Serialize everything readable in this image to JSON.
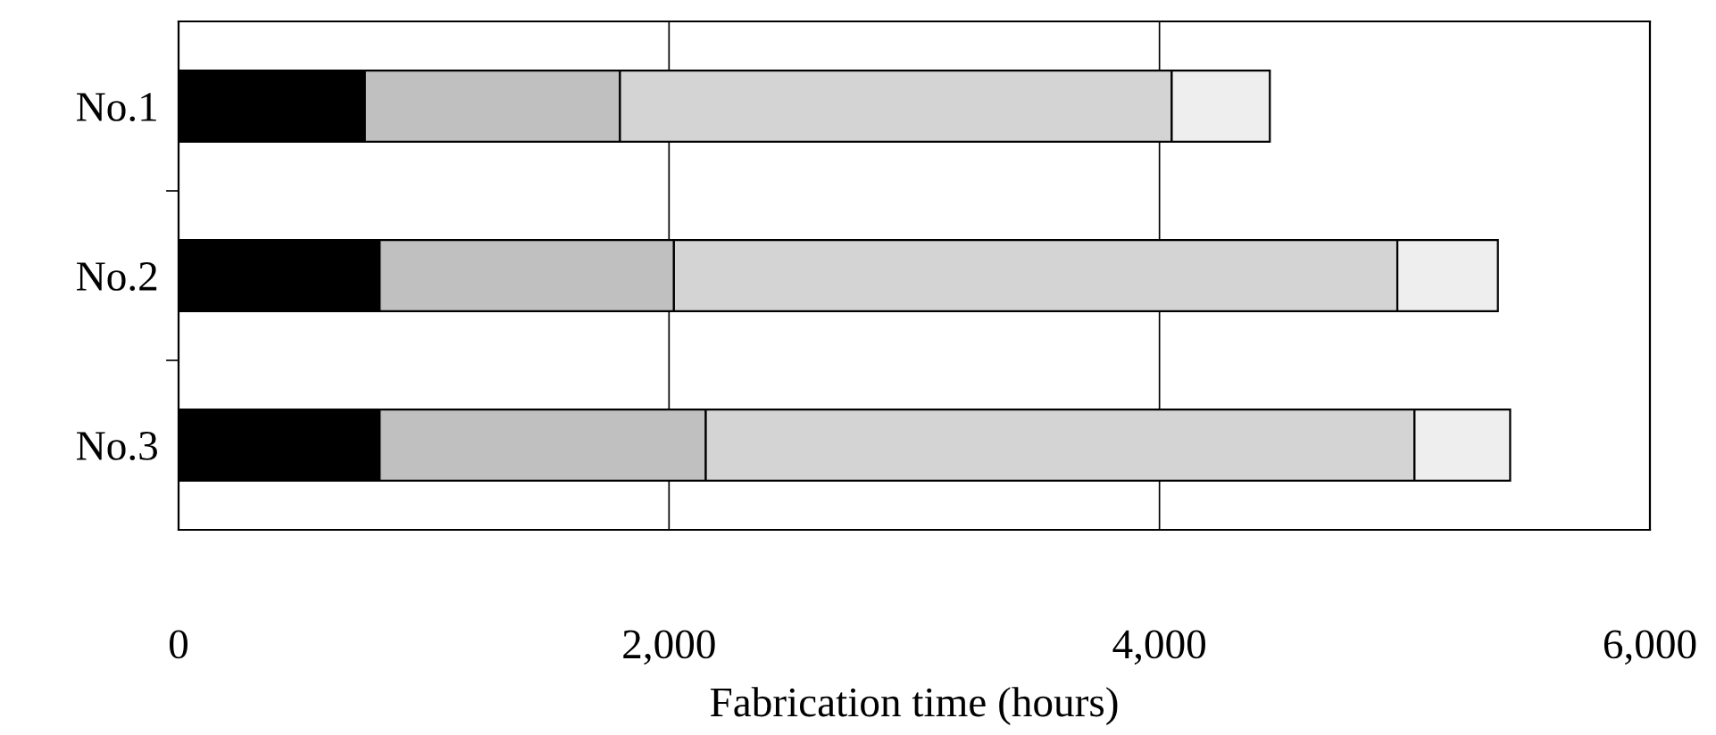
{
  "chart_data": {
    "type": "bar",
    "orientation": "horizontal",
    "stacked": true,
    "categories": [
      "No.1",
      "No.2",
      "No.3"
    ],
    "series": [
      {
        "color": "#000000",
        "values": [
          760,
          820,
          820
        ]
      },
      {
        "color": "#c0c0c0",
        "values": [
          1040,
          1200,
          1330
        ]
      },
      {
        "color": "#d4d4d4",
        "values": [
          2250,
          2950,
          2890
        ]
      },
      {
        "color": "#eeeeee",
        "values": [
          400,
          410,
          390
        ]
      }
    ],
    "xlim": [
      0,
      6000
    ],
    "xticks": [
      {
        "value": 0,
        "label": "0"
      },
      {
        "value": 2000,
        "label": "2,000"
      },
      {
        "value": 4000,
        "label": "4,000"
      },
      {
        "value": 6000,
        "label": "6,000"
      }
    ],
    "xlabel": "Fabrication time (hours)",
    "grid": "x",
    "legend": false
  }
}
